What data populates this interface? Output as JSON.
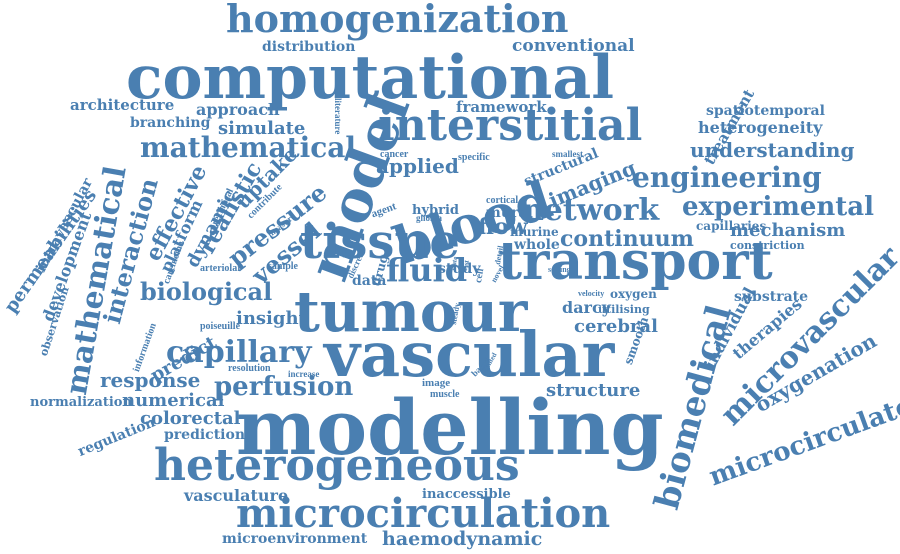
{
  "title": "",
  "color": "#4a7fb1",
  "words": [
    "homogenization",
    "distribution",
    "conventional",
    "computational",
    "architecture",
    "approach",
    "framework",
    "literature",
    "treatment",
    "branching",
    "simulate",
    "interstitial",
    "spatiotemporal",
    "heterogeneity",
    "mathematical",
    "model",
    "cancer",
    "specific",
    "smallest",
    "structural",
    "understanding",
    "applied",
    "blood",
    "imaging",
    "engineering",
    "permeabilities",
    "intravascular",
    "development",
    "observation",
    "mathematical",
    "interaction",
    "effective",
    "platform",
    "carcinoma",
    "realistic",
    "preclinical",
    "dynamic",
    "uptake",
    "contribute",
    "pressure",
    "measure",
    "vessel",
    "arteriolar",
    "sample",
    "agent",
    "glioma",
    "hybrid",
    "tissue",
    "cortical",
    "mural",
    "flow",
    "network",
    "experimental",
    "capillaries",
    "mechanism",
    "murine",
    "whole",
    "continuum",
    "constriction",
    "discrete",
    "drug",
    "fluid",
    "state",
    "lost",
    "data",
    "study",
    "novel",
    "detail",
    "cell",
    "setting",
    "transport",
    "biological",
    "predict",
    "insight",
    "information",
    "poiseuille",
    "tumour",
    "steady",
    "velocity",
    "oxygen",
    "darcy",
    "utilising",
    "substrate",
    "therapies",
    "individual",
    "microvascular",
    "cerebral",
    "capillary",
    "resolution",
    "increase",
    "vascular",
    "smooth",
    "oxygenation",
    "response",
    "perfusion",
    "microcirculatory",
    "normalization",
    "numerical",
    "image",
    "muscle",
    "limited",
    "based",
    "structure",
    "biomedical",
    "regulation",
    "colorectal",
    "prediction",
    "modelling",
    "heterogeneous",
    "vasculature",
    "inaccessible",
    "microcirculation",
    "microenvironment",
    "haemodynamic"
  ]
}
